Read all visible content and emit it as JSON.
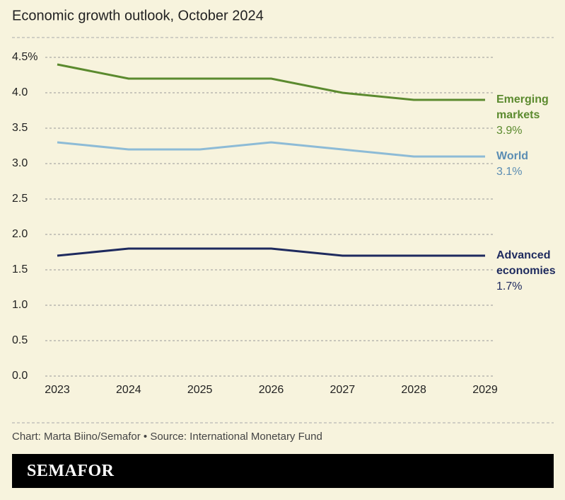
{
  "chart_data": {
    "type": "line",
    "title": "Economic growth outlook, October 2024",
    "categories": [
      "2023",
      "2024",
      "2025",
      "2026",
      "2027",
      "2028",
      "2029"
    ],
    "series": [
      {
        "name": "Emerging markets",
        "color": "#5b8a2e",
        "values": [
          4.4,
          4.2,
          4.2,
          4.2,
          4.0,
          3.9,
          3.9
        ],
        "value_labels": [
          null,
          null,
          null,
          null,
          null,
          null,
          "3.9%"
        ]
      },
      {
        "name": "World",
        "color": "#8dbbd6",
        "label_color": "#5b8db3",
        "values": [
          3.3,
          3.2,
          3.2,
          3.3,
          3.2,
          3.1,
          3.1
        ],
        "value_labels": [
          null,
          null,
          null,
          null,
          null,
          null,
          "3.1%"
        ]
      },
      {
        "name": "Advanced economies",
        "color": "#1e2a5e",
        "values": [
          1.7,
          1.8,
          1.8,
          1.8,
          1.7,
          1.7,
          1.7
        ],
        "value_labels": [
          null,
          null,
          null,
          null,
          null,
          null,
          "1.7%"
        ]
      }
    ],
    "ylim": [
      0,
      4.5
    ],
    "yticks": [
      {
        "value": 0,
        "label": "0.0"
      },
      0.5,
      {
        "value": 1,
        "label": "1.0"
      },
      1.5,
      {
        "value": 2,
        "label": "2.0"
      },
      2.5,
      {
        "value": 3,
        "label": "3.0"
      },
      3.5,
      {
        "value": 4,
        "label": "4.0"
      },
      {
        "value": 4.5,
        "label": "4.5%"
      }
    ],
    "grid": true,
    "source": "Chart: Marta Biino/Semafor • Source: International Monetary Fund",
    "brand": "SEMAFOR"
  }
}
